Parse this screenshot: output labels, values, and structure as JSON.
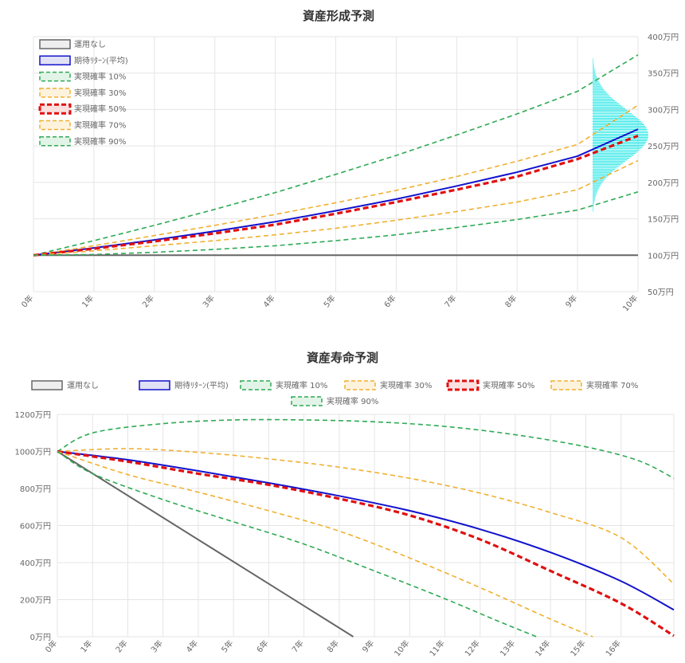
{
  "chart_data": [
    {
      "type": "line",
      "title": "資産形成予測",
      "x": [
        "0年",
        "1年",
        "2年",
        "3年",
        "4年",
        "5年",
        "6年",
        "7年",
        "8年",
        "9年",
        "10年"
      ],
      "yaxis_position": "right",
      "y_unit": "万円",
      "ylim": [
        50,
        400
      ],
      "yticks": [
        "50万円",
        "100万円",
        "150万円",
        "200万円",
        "250万円",
        "300万円",
        "350万円",
        "400万円"
      ],
      "legend_position": "top-left-vertical",
      "grid": true,
      "series": [
        {
          "name": "運用なし",
          "color": "#666666",
          "dash": "solid",
          "width": 2,
          "fill": "#eeeeee",
          "values": [
            100,
            100,
            100,
            100,
            100,
            100,
            100,
            100,
            100,
            100,
            100
          ]
        },
        {
          "name": "期待ﾘﾀｰﾝ(平均)",
          "color": "#1111cc",
          "dash": "solid",
          "width": 2,
          "fill": "#e1e1f5",
          "values": [
            100,
            110,
            121,
            133,
            146,
            161,
            177,
            195,
            214,
            236,
            273
          ]
        },
        {
          "name": "実現確率 10%",
          "color": "#2eaa55",
          "dash": "dashed",
          "width": 1.6,
          "fill": "#e2f4e7",
          "values": [
            100,
            120,
            141,
            163,
            186,
            211,
            237,
            265,
            294,
            325,
            375
          ]
        },
        {
          "name": "実現確率 30%",
          "color": "#f0b030",
          "dash": "dashed",
          "width": 1.6,
          "fill": "#fdf2dc",
          "values": [
            100,
            113,
            127,
            141,
            156,
            172,
            189,
            208,
            229,
            252,
            306
          ]
        },
        {
          "name": "実現確率 50%",
          "color": "#e01010",
          "dash": "dashed-bold",
          "width": 3.2,
          "fill": "#fbe0e0",
          "values": [
            100,
            109,
            119,
            130,
            142,
            157,
            173,
            190,
            208,
            232,
            264
          ]
        },
        {
          "name": "実現確率 70%",
          "color": "#f0b030",
          "dash": "dashed",
          "width": 1.6,
          "fill": "#fdf2dc",
          "values": [
            100,
            106,
            113,
            120,
            128,
            137,
            148,
            160,
            173,
            190,
            230
          ]
        },
        {
          "name": "実現確率 90%",
          "color": "#2eaa55",
          "dash": "dashed",
          "width": 1.6,
          "fill": "#e2f4e7",
          "values": [
            100,
            101,
            104,
            108,
            113,
            120,
            128,
            138,
            149,
            162,
            187
          ]
        }
      ],
      "distribution": {
        "color": "#22e6e6",
        "peak_value": 265,
        "range": [
          145,
          400
        ]
      }
    },
    {
      "type": "line",
      "title": "資産寿命予測",
      "x": [
        "0年",
        "1年",
        "2年",
        "3年",
        "4年",
        "5年",
        "6年",
        "7年",
        "8年",
        "9年",
        "10年",
        "11年",
        "12年",
        "13年",
        "14年",
        "15年",
        "16年"
      ],
      "x_max": 17.5,
      "yaxis_position": "left",
      "y_unit": "万円",
      "ylim": [
        0,
        1200
      ],
      "yticks": [
        "0万円",
        "200万円",
        "400万円",
        "600万円",
        "800万円",
        "1000万円",
        "1200万円"
      ],
      "legend_position": "top",
      "grid": true,
      "series": [
        {
          "name": "運用なし",
          "color": "#666666",
          "dash": "solid",
          "width": 2,
          "fill": "#eeeeee",
          "points": [
            [
              0,
              1000
            ],
            [
              8.4,
              0
            ]
          ]
        },
        {
          "name": "期待ﾘﾀｰﾝ(平均)",
          "color": "#1111cc",
          "dash": "solid",
          "width": 2,
          "fill": "#e1e1f5",
          "points": [
            [
              0,
              1000
            ],
            [
              2,
              955
            ],
            [
              4,
              895
            ],
            [
              6,
              830
            ],
            [
              8,
              760
            ],
            [
              10,
              680
            ],
            [
              12,
              580
            ],
            [
              14,
              455
            ],
            [
              16,
              300
            ],
            [
              17.5,
              145
            ]
          ]
        },
        {
          "name": "実現確率 10%",
          "color": "#2eaa55",
          "dash": "dashed",
          "width": 1.6,
          "fill": "#e2f4e7",
          "points": [
            [
              0,
              1000
            ],
            [
              1,
              1100
            ],
            [
              3,
              1150
            ],
            [
              5,
              1170
            ],
            [
              7,
              1170
            ],
            [
              9,
              1160
            ],
            [
              11,
              1135
            ],
            [
              13,
              1090
            ],
            [
              15,
              1025
            ],
            [
              16.5,
              950
            ],
            [
              17.5,
              855
            ]
          ]
        },
        {
          "name": "実現確率 30%",
          "color": "#f0b030",
          "dash": "dashed",
          "width": 1.6,
          "fill": "#fdf2dc",
          "points": [
            [
              0,
              1000
            ],
            [
              2,
              1015
            ],
            [
              4,
              995
            ],
            [
              6,
              960
            ],
            [
              8,
              915
            ],
            [
              10,
              855
            ],
            [
              12,
              775
            ],
            [
              14,
              670
            ],
            [
              16,
              535
            ],
            [
              17.5,
              285
            ]
          ]
        },
        {
          "name": "実現確率 50%",
          "color": "#e01010",
          "dash": "dashed-bold",
          "width": 3.2,
          "fill": "#fbe0e0",
          "points": [
            [
              0,
              1000
            ],
            [
              2,
              945
            ],
            [
              4,
              880
            ],
            [
              6,
              820
            ],
            [
              8,
              745
            ],
            [
              10,
              655
            ],
            [
              12,
              525
            ],
            [
              14,
              355
            ],
            [
              16,
              180
            ],
            [
              17.5,
              5
            ]
          ]
        },
        {
          "name": "実現確率 70%",
          "color": "#f0b030",
          "dash": "dashed",
          "width": 1.6,
          "fill": "#fdf2dc",
          "points": [
            [
              0,
              1000
            ],
            [
              2,
              875
            ],
            [
              4,
              780
            ],
            [
              6,
              680
            ],
            [
              8,
              570
            ],
            [
              10,
              425
            ],
            [
              12,
              265
            ],
            [
              14,
              95
            ],
            [
              15.2,
              0
            ]
          ]
        },
        {
          "name": "実現確率 90%",
          "color": "#2eaa55",
          "dash": "dashed",
          "width": 1.6,
          "fill": "#e2f4e7",
          "points": [
            [
              0,
              1000
            ],
            [
              1,
              880
            ],
            [
              3,
              740
            ],
            [
              5,
              620
            ],
            [
              7,
              500
            ],
            [
              9,
              355
            ],
            [
              11,
              205
            ],
            [
              12.5,
              85
            ],
            [
              13.6,
              0
            ]
          ]
        }
      ]
    }
  ]
}
